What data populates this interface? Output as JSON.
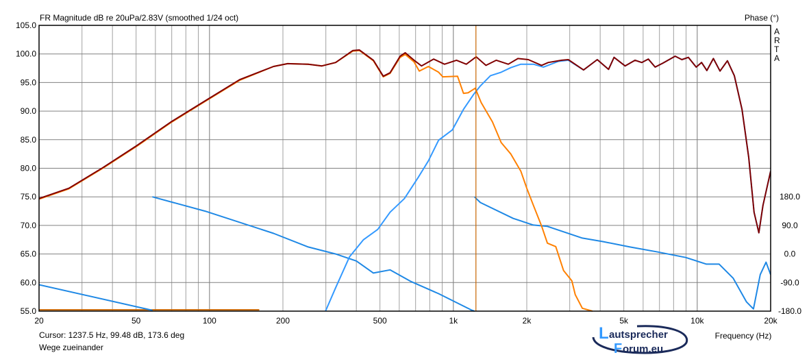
{
  "chart_data": {
    "type": "line",
    "title": "FR Magnitude dB re 20uPa/2.83V (smoothed 1/24 oct)",
    "xlabel": "Frequency (Hz)",
    "ylabel": "",
    "y2label": "Phase (°)",
    "x_scale": "log",
    "xlim": [
      20,
      20000
    ],
    "ylim": [
      55,
      105
    ],
    "y2lim": [
      -180,
      180
    ],
    "grid": true,
    "x_ticks": [
      20,
      50,
      100,
      200,
      500,
      1000,
      2000,
      5000,
      10000,
      20000
    ],
    "x_tick_labels": [
      "20",
      "50",
      "100",
      "200",
      "500",
      "1k",
      "2k",
      "5k",
      "10k",
      "20k"
    ],
    "y_tick_labels": [
      "105.0",
      "100.0",
      "95.0",
      "90.0",
      "85.0",
      "80.0",
      "75.0",
      "70.0",
      "65.0",
      "60.0",
      "55.0"
    ],
    "y2_tick_labels": [
      "180.0",
      "90.0",
      "0.0",
      "-90.0",
      "-180.0"
    ],
    "cursor": {
      "freq": 1237.5,
      "color": "#c86400"
    },
    "series": [
      {
        "kind": "magnitude",
        "color": "#800000",
        "x": [
          20,
          26.5,
          36.5,
          50.5,
          69.5,
          96,
          133,
          183,
          209,
          254,
          289,
          329,
          387,
          412,
          470,
          516,
          550,
          605,
          635,
          690,
          740,
          830,
          920,
          1030,
          1130,
          1240,
          1360,
          1500,
          1680,
          1840,
          2030,
          2300,
          2450,
          2780,
          2960,
          3420,
          3890,
          4330,
          4560,
          5060,
          5560,
          5920,
          6300,
          6720,
          7240,
          8120,
          8650,
          9200,
          9900,
          10420,
          10950,
          11650,
          12400,
          13300,
          14200,
          15260,
          16260,
          17100,
          17900,
          18600,
          20000
        ],
        "y": [
          74.7,
          76.5,
          80.1,
          84.0,
          88.1,
          91.8,
          95.5,
          97.8,
          98.3,
          98.2,
          97.9,
          98.5,
          100.6,
          100.7,
          98.9,
          96.1,
          96.7,
          99.6,
          100.2,
          98.9,
          97.9,
          99.1,
          98.2,
          98.9,
          98.2,
          99.5,
          98.0,
          98.9,
          98.2,
          99.2,
          99.0,
          98.0,
          98.5,
          98.9,
          99.0,
          97.2,
          99.0,
          97.3,
          99.4,
          97.9,
          98.9,
          98.5,
          99.1,
          97.7,
          98.4,
          99.6,
          99.0,
          99.4,
          97.7,
          98.5,
          97.1,
          99.2,
          97.0,
          98.8,
          96.2,
          90.3,
          81.9,
          72.3,
          68.7,
          73.5,
          79.5
        ]
      },
      {
        "kind": "magnitude",
        "color": "#ff8000",
        "x": [
          20,
          26.5,
          36.5,
          50.5,
          69.5,
          96,
          133,
          183,
          209,
          254,
          289,
          329,
          387,
          412,
          470,
          516,
          550,
          605,
          635,
          690,
          725,
          790,
          870,
          905,
          1040,
          1100,
          1150,
          1230,
          1300,
          1446,
          1570,
          1720,
          1890,
          2000,
          2130,
          2300,
          2430,
          2630,
          2830,
          3060,
          3160,
          3380,
          3720
        ],
        "y": [
          74.6,
          76.4,
          80.0,
          83.9,
          88.0,
          91.7,
          95.4,
          97.8,
          98.3,
          98.2,
          97.9,
          98.5,
          100.5,
          100.6,
          98.8,
          96.0,
          96.6,
          99.4,
          99.9,
          98.6,
          97.0,
          97.8,
          96.8,
          96.0,
          96.1,
          93.1,
          93.2,
          94.0,
          91.5,
          88.1,
          84.5,
          82.5,
          79.5,
          76.5,
          73.5,
          69.9,
          66.9,
          66.3,
          62.1,
          60.3,
          57.9,
          55.5,
          55.0
        ]
      },
      {
        "kind": "magnitude",
        "color": "#3399ff",
        "x": [
          299,
          329,
          375,
          428,
          490,
          550,
          630,
          715,
          790,
          870,
          990,
          1100,
          1210,
          1290,
          1420,
          1570,
          1720,
          1890,
          2130,
          2340,
          2700,
          2960,
          3420,
          3890,
          4330,
          4560,
          5060,
          5560,
          5920,
          6300,
          6720,
          7240,
          8120,
          8650,
          9200,
          9900,
          10420,
          10950,
          11650,
          12400,
          13300,
          14200,
          15260,
          16260,
          17100,
          17900,
          18600,
          20000
        ],
        "y": [
          55.0,
          59.1,
          64.5,
          67.5,
          69.3,
          72.3,
          74.7,
          78.3,
          81.3,
          84.9,
          86.7,
          90.3,
          92.9,
          94.4,
          96.2,
          96.8,
          97.6,
          98.2,
          98.2,
          97.7,
          98.7,
          98.9,
          97.2,
          99.0,
          97.3,
          99.4,
          97.9,
          98.9,
          98.5,
          99.1,
          97.7,
          98.4,
          99.6,
          99.0,
          99.4,
          97.7,
          98.5,
          97.1,
          99.2,
          97.0,
          98.8,
          96.2,
          90.3,
          81.9,
          72.3,
          68.7,
          73.5,
          79.5
        ]
      },
      {
        "kind": "phase",
        "color": "#1e88e5",
        "x": [
          20,
          58,
          58.3,
          96,
          183,
          254,
          329,
          400,
          470,
          550,
          667,
          870,
          1190,
          1220,
          1290,
          1760,
          2130,
          2430,
          3380,
          4100,
          5300,
          6920,
          8970,
          10900,
          12300,
          14030,
          15930,
          17000,
          18130,
          19150,
          20000
        ],
        "y": [
          -97,
          -177,
          180,
          135,
          65,
          22,
          0,
          -22,
          -60,
          -50,
          -86,
          -125,
          -177,
          180,
          162,
          112,
          91,
          87,
          50,
          39,
          22,
          6,
          -11,
          -32,
          -32,
          -76,
          -151,
          -173,
          -65,
          -26,
          -65
        ]
      },
      {
        "kind": "phase",
        "color": "#c86400",
        "x": [
          20,
          160
        ],
        "y": [
          -176,
          -176
        ]
      }
    ]
  },
  "status": {
    "cursor_readout": "Cursor: 1237.5 Hz, 99.48 dB, 173.6 deg",
    "comment": "Wege zueinander"
  },
  "side_label": [
    "A",
    "R",
    "T",
    "A"
  ],
  "logo": {
    "line1": "Lautsprecher",
    "line2": "Forum.eu"
  }
}
